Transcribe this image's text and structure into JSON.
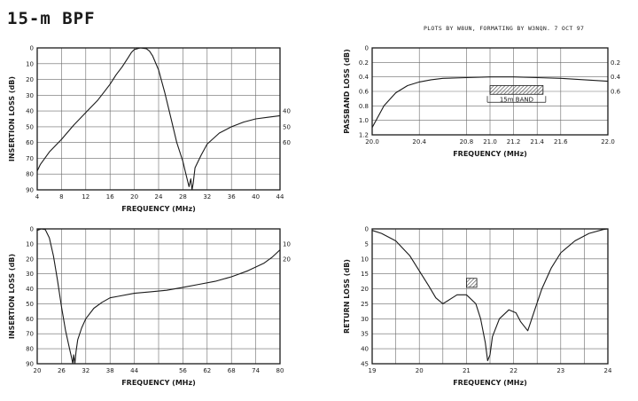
{
  "header": {
    "title": "15-m BPF",
    "credit": "PLOTS BY W8UN, FORMATING BY W3NQN.  7 OCT 97"
  },
  "colors": {
    "ink": "#1a1a1a",
    "grid": "#6a6a6a",
    "hatch": "#444444"
  },
  "chart_data": [
    {
      "id": "tl",
      "type": "line",
      "xlabel": "FREQUENCY (MHz)",
      "ylabel": "INSERTION LOSS (dB)",
      "xlim": [
        4,
        44
      ],
      "ylim": [
        0,
        90
      ],
      "y_inverted": true,
      "xticks": [
        4,
        8,
        12,
        16,
        20,
        24,
        28,
        32,
        36,
        40,
        44
      ],
      "yticks": [
        0,
        10,
        20,
        30,
        40,
        50,
        60,
        70,
        80,
        90
      ],
      "right_labels": [
        {
          "y": 40,
          "text": "40"
        },
        {
          "y": 50,
          "text": "50"
        },
        {
          "y": 60,
          "text": "60"
        }
      ],
      "grid": true,
      "series": [
        {
          "x": [
            4,
            4.5,
            6,
            8,
            10,
            12,
            14,
            15,
            16,
            17,
            18,
            19,
            19.5,
            20,
            21,
            22,
            22.5,
            23,
            24,
            25,
            26,
            27,
            28,
            28.5,
            29,
            29.3,
            29.5,
            29.7,
            30,
            31,
            32,
            34,
            36,
            38,
            40,
            42,
            44
          ],
          "y": [
            78,
            74,
            66,
            58,
            49,
            41,
            33,
            28,
            23,
            17,
            12,
            6,
            3,
            1,
            0,
            0.5,
            2,
            5,
            14,
            28,
            44,
            60,
            72,
            80,
            88,
            83,
            90,
            86,
            76,
            68,
            61,
            54,
            50,
            47,
            45,
            44,
            43
          ]
        }
      ]
    },
    {
      "id": "tr",
      "type": "line",
      "xlabel": "FREQUENCY (MHz)",
      "ylabel": "PASSBAND LOSS (dB)",
      "xlim": [
        20.0,
        22.0
      ],
      "ylim": [
        0,
        1.2
      ],
      "y_inverted": true,
      "xticks": [
        20.0,
        20.4,
        20.8,
        21.0,
        21.2,
        21.4,
        21.6,
        22.0
      ],
      "xtick_labels": [
        "20.0",
        "20.4",
        "20.8",
        "21.0",
        "21.2",
        "21.4",
        "21.6",
        "22.0"
      ],
      "yticks": [
        0,
        0.2,
        0.4,
        0.6,
        0.8,
        1.0,
        1.2
      ],
      "ytick_labels": [
        "0",
        "0.2",
        "0.4",
        "0.6",
        "0.8",
        "1.0",
        "1.2"
      ],
      "right_labels": [
        {
          "y": 0.2,
          "text": "0.2"
        },
        {
          "y": 0.4,
          "text": "0.4"
        },
        {
          "y": 0.6,
          "text": "0.6"
        }
      ],
      "grid": true,
      "band": {
        "x0": 21.0,
        "x1": 21.45,
        "y0": 0.52,
        "y1": 0.64,
        "label": "15m BAND"
      },
      "series": [
        {
          "x": [
            20.0,
            20.1,
            20.2,
            20.3,
            20.4,
            20.5,
            20.6,
            20.8,
            21.0,
            21.2,
            21.4,
            21.6,
            21.8,
            22.0
          ],
          "y": [
            1.1,
            0.8,
            0.62,
            0.52,
            0.47,
            0.44,
            0.42,
            0.41,
            0.4,
            0.4,
            0.41,
            0.42,
            0.44,
            0.46
          ]
        }
      ]
    },
    {
      "id": "bl",
      "type": "line",
      "xlabel": "FREQUENCY (MHz)",
      "ylabel": "INSERTION LOSS (dB)",
      "xlim": [
        20,
        80
      ],
      "ylim": [
        0,
        90
      ],
      "y_inverted": true,
      "xticks": [
        20,
        26,
        32,
        38,
        44,
        50,
        56,
        62,
        68,
        74,
        80
      ],
      "x_label_ticks": [
        20,
        26,
        32,
        38,
        44,
        56,
        62,
        68,
        74,
        80
      ],
      "yticks": [
        0,
        10,
        20,
        30,
        40,
        50,
        60,
        70,
        80,
        90
      ],
      "right_labels": [
        {
          "y": 10,
          "text": "10"
        },
        {
          "y": 20,
          "text": "20"
        }
      ],
      "grid": true,
      "series": [
        {
          "x": [
            20,
            21,
            22,
            23,
            24,
            25,
            26,
            27,
            28,
            28.5,
            28.8,
            29,
            29.3,
            29.6,
            30,
            31,
            32,
            34,
            36,
            38,
            40,
            44,
            48,
            52,
            56,
            60,
            64,
            68,
            72,
            76,
            78,
            80
          ],
          "y": [
            1,
            0,
            0.5,
            6,
            18,
            34,
            52,
            68,
            80,
            86,
            90,
            84,
            90,
            82,
            74,
            66,
            60,
            53,
            49,
            46,
            45,
            43,
            42,
            41,
            39,
            37,
            35,
            32,
            28,
            23,
            19,
            14
          ]
        }
      ]
    },
    {
      "id": "br",
      "type": "line",
      "xlabel": "FREQUENCY (MHz)",
      "ylabel": "RETURN LOSS (dB)",
      "xlim": [
        19,
        24
      ],
      "ylim": [
        0,
        45
      ],
      "y_inverted": true,
      "xticks": [
        19,
        19.5,
        20,
        20.5,
        21,
        21.5,
        22,
        22.5,
        23,
        23.5,
        24
      ],
      "x_label_ticks": [
        19,
        20,
        21,
        22,
        23,
        24
      ],
      "yticks": [
        0,
        5,
        10,
        15,
        20,
        25,
        30,
        35,
        40,
        45
      ],
      "grid": true,
      "band": {
        "x0": 21.0,
        "x1": 21.22,
        "y0": 16.5,
        "y1": 19.5,
        "label": ""
      },
      "series": [
        {
          "x": [
            19,
            19.2,
            19.5,
            19.8,
            20.0,
            20.2,
            20.35,
            20.5,
            20.6,
            20.8,
            21.0,
            21.2,
            21.3,
            21.4,
            21.45,
            21.5,
            21.55,
            21.7,
            21.9,
            22.05,
            22.15,
            22.3,
            22.45,
            22.6,
            22.8,
            23.0,
            23.3,
            23.6,
            23.9,
            24.0
          ],
          "y": [
            0.5,
            1.5,
            4,
            9,
            14,
            19,
            23,
            25,
            24,
            22,
            22,
            25,
            30,
            38,
            44,
            42,
            36,
            30,
            27,
            28,
            31,
            34,
            27,
            20,
            13,
            8,
            4,
            1.5,
            0.2,
            0
          ]
        }
      ]
    }
  ]
}
